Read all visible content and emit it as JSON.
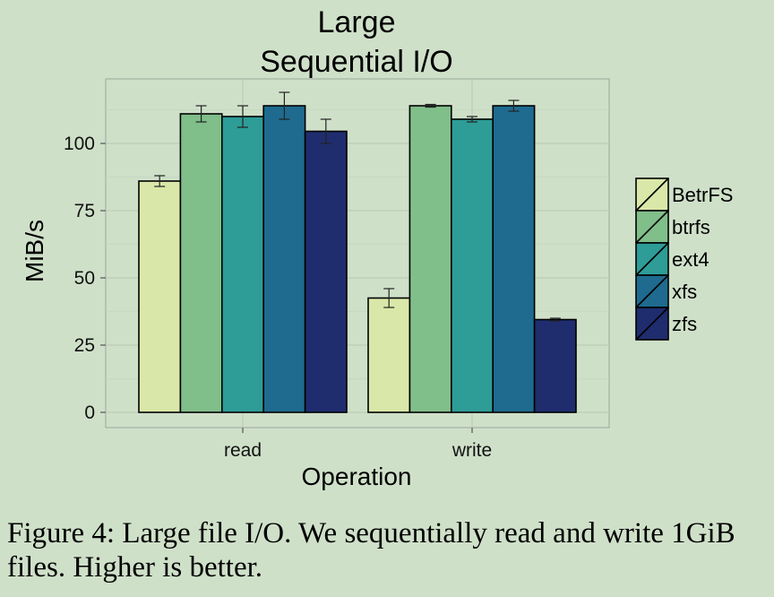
{
  "chart_data": {
    "type": "bar",
    "title_lines": [
      "Large",
      "Sequential I/O"
    ],
    "xlabel": "Operation",
    "ylabel": "MiB/s",
    "categories": [
      "read",
      "write"
    ],
    "ylim": [
      0,
      125
    ],
    "yticks": [
      0,
      25,
      50,
      75,
      100
    ],
    "grid": true,
    "legend_position": "right",
    "series": [
      {
        "name": "BetrFS",
        "color": "#d9e8a8",
        "values": [
          86,
          42.5
        ],
        "error": [
          2,
          3.5
        ]
      },
      {
        "name": "btrfs",
        "color": "#80be8a",
        "values": [
          111,
          114
        ],
        "error": [
          3,
          0.5
        ]
      },
      {
        "name": "ext4",
        "color": "#2e9c97",
        "values": [
          110,
          109
        ],
        "error": [
          4,
          1
        ]
      },
      {
        "name": "xfs",
        "color": "#1e6b8f",
        "values": [
          114,
          114
        ],
        "error": [
          5,
          2
        ]
      },
      {
        "name": "zfs",
        "color": "#1f2d6e",
        "values": [
          104.5,
          34.5
        ],
        "error": [
          4.5,
          0.5
        ]
      }
    ]
  },
  "caption": "Figure 4: Large file I/O. We sequentially read and write 1GiB files. Higher is better."
}
